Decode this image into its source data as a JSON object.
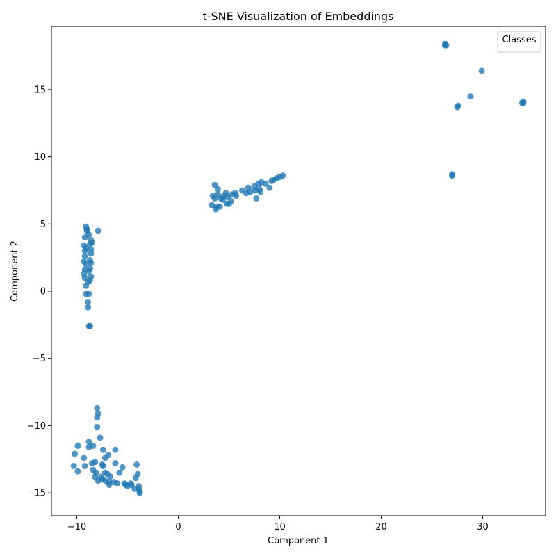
{
  "chart_data": {
    "type": "scatter",
    "title": "t-SNE Visualization of Embeddings",
    "xlabel": "Component 1",
    "ylabel": "Component 2",
    "xlim": [
      -12.5,
      36.2
    ],
    "ylim": [
      -16.7,
      19.7
    ],
    "xticks": [
      -10,
      0,
      10,
      20,
      30
    ],
    "yticks": [
      -15,
      -10,
      -5,
      0,
      5,
      10,
      15
    ],
    "xtick_labels": [
      "−10",
      "0",
      "10",
      "20",
      "30"
    ],
    "ytick_labels": [
      "−15",
      "−10",
      "−5",
      "0",
      "5",
      "10",
      "15"
    ],
    "grid": false,
    "legend": {
      "title": "Classes",
      "placement": "top-right"
    },
    "point_color": "#1f77b4",
    "points": [
      [
        26.3,
        18.3
      ],
      [
        26.3,
        18.4
      ],
      [
        26.4,
        18.3
      ],
      [
        29.9,
        16.4
      ],
      [
        28.8,
        14.5
      ],
      [
        27.5,
        13.7
      ],
      [
        27.6,
        13.8
      ],
      [
        34.0,
        14.0
      ],
      [
        34.0,
        14.1
      ],
      [
        33.9,
        14.0
      ],
      [
        27.0,
        8.7
      ],
      [
        27.0,
        8.6
      ],
      [
        3.6,
        7.9
      ],
      [
        3.9,
        7.6
      ],
      [
        3.4,
        7.1
      ],
      [
        3.6,
        6.9
      ],
      [
        3.3,
        6.4
      ],
      [
        3.8,
        6.3
      ],
      [
        3.7,
        6.1
      ],
      [
        4.1,
        6.3
      ],
      [
        4.2,
        6.9
      ],
      [
        4.5,
        7.1
      ],
      [
        4.7,
        7.3
      ],
      [
        4.9,
        7.0
      ],
      [
        5.0,
        6.5
      ],
      [
        5.2,
        6.7
      ],
      [
        4.8,
        6.5
      ],
      [
        5.6,
        7.3
      ],
      [
        5.7,
        7.1
      ],
      [
        6.7,
        7.3
      ],
      [
        6.9,
        7.7
      ],
      [
        7.1,
        7.4
      ],
      [
        7.5,
        7.8
      ],
      [
        7.6,
        7.5
      ],
      [
        7.7,
        6.9
      ],
      [
        7.9,
        8.0
      ],
      [
        8.0,
        7.6
      ],
      [
        8.1,
        7.4
      ],
      [
        8.2,
        8.1
      ],
      [
        8.6,
        8.0
      ],
      [
        9.0,
        7.7
      ],
      [
        9.2,
        8.2
      ],
      [
        9.4,
        8.3
      ],
      [
        9.7,
        8.4
      ],
      [
        10.0,
        8.5
      ],
      [
        10.3,
        8.6
      ],
      [
        5.3,
        7.2
      ],
      [
        3.9,
        7.2
      ],
      [
        4.4,
        6.8
      ],
      [
        6.3,
        7.5
      ],
      [
        -9.1,
        4.8
      ],
      [
        -9.0,
        4.5
      ],
      [
        -8.8,
        4.2
      ],
      [
        -7.9,
        4.5
      ],
      [
        -9.2,
        4.0
      ],
      [
        -8.6,
        3.8
      ],
      [
        -8.7,
        3.5
      ],
      [
        -9.3,
        3.4
      ],
      [
        -9.1,
        3.2
      ],
      [
        -8.6,
        3.1
      ],
      [
        -9.2,
        3.0
      ],
      [
        -8.6,
        2.8
      ],
      [
        -9.3,
        2.2
      ],
      [
        -9.1,
        2.0
      ],
      [
        -8.7,
        2.3
      ],
      [
        -8.6,
        2.1
      ],
      [
        -8.7,
        1.7
      ],
      [
        -9.2,
        1.6
      ],
      [
        -9.3,
        1.3
      ],
      [
        -9.2,
        1.0
      ],
      [
        -8.6,
        1.1
      ],
      [
        -8.7,
        0.8
      ],
      [
        -8.9,
        0.7
      ],
      [
        -9.1,
        0.4
      ],
      [
        -9.1,
        -0.2
      ],
      [
        -8.8,
        -0.2
      ],
      [
        -8.9,
        -0.8
      ],
      [
        -8.9,
        -1.2
      ],
      [
        -8.7,
        -2.6
      ],
      [
        -8.8,
        -2.6
      ],
      [
        -9.0,
        4.6
      ],
      [
        -8.5,
        3.6
      ],
      [
        -9.2,
        2.6
      ],
      [
        -8.8,
        1.5
      ],
      [
        -8.0,
        -8.7
      ],
      [
        -7.9,
        -9.1
      ],
      [
        -8.0,
        -9.4
      ],
      [
        -8.0,
        -10.1
      ],
      [
        -7.7,
        -10.9
      ],
      [
        -9.9,
        -11.5
      ],
      [
        -8.8,
        -11.2
      ],
      [
        -8.8,
        -11.6
      ],
      [
        -8.4,
        -11.5
      ],
      [
        -7.4,
        -11.8
      ],
      [
        -6.2,
        -11.8
      ],
      [
        -10.2,
        -12.1
      ],
      [
        -9.3,
        -12.4
      ],
      [
        -7.2,
        -12.4
      ],
      [
        -6.9,
        -12.2
      ],
      [
        -8.5,
        -12.8
      ],
      [
        -8.2,
        -12.7
      ],
      [
        -7.5,
        -12.9
      ],
      [
        -7.4,
        -13.0
      ],
      [
        -6.2,
        -12.8
      ],
      [
        -10.3,
        -13.0
      ],
      [
        -9.2,
        -13.0
      ],
      [
        -4.1,
        -12.9
      ],
      [
        -8.4,
        -13.3
      ],
      [
        -8.1,
        -13.5
      ],
      [
        -7.2,
        -13.5
      ],
      [
        -7.0,
        -13.6
      ],
      [
        -5.8,
        -13.5
      ],
      [
        -5.5,
        -13.1
      ],
      [
        -9.9,
        -13.4
      ],
      [
        -8.2,
        -13.8
      ],
      [
        -7.6,
        -13.8
      ],
      [
        -6.7,
        -13.8
      ],
      [
        -4.0,
        -13.6
      ],
      [
        -4.2,
        -13.9
      ],
      [
        -7.9,
        -14.1
      ],
      [
        -7.5,
        -14.0
      ],
      [
        -7.2,
        -14.1
      ],
      [
        -6.8,
        -14.2
      ],
      [
        -6.3,
        -14.2
      ],
      [
        -6.0,
        -14.3
      ],
      [
        -5.3,
        -14.3
      ],
      [
        -5.0,
        -14.5
      ],
      [
        -4.7,
        -14.3
      ],
      [
        -4.3,
        -14.7
      ],
      [
        -3.9,
        -14.5
      ],
      [
        -3.8,
        -14.9
      ],
      [
        -3.8,
        -15.0
      ],
      [
        -6.8,
        -14.4
      ],
      [
        -5.2,
        -14.4
      ],
      [
        -3.9,
        -14.7
      ],
      [
        -4.6,
        -14.4
      ]
    ]
  }
}
